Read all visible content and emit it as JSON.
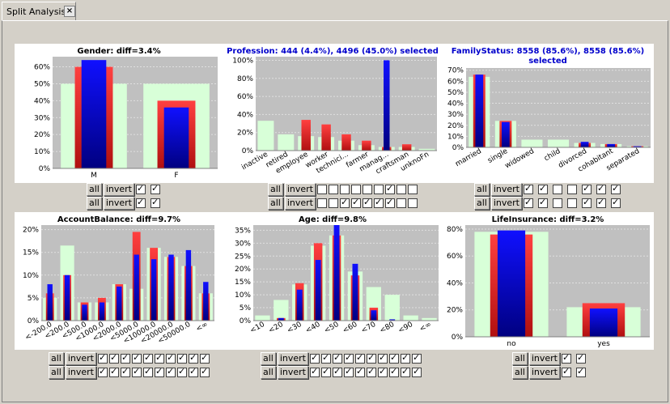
{
  "tab": {
    "title": "Split Analysis",
    "close": "×"
  },
  "controls": {
    "all": "all",
    "invert": "invert"
  },
  "colors": {
    "plot_bg": "#c0c0c0",
    "all": "#d8ffd8",
    "red": "#e83030",
    "blue": "#0000dd"
  },
  "charts": [
    {
      "id": "gender",
      "title": "Gender: diff=3.4%",
      "selected": false,
      "type": "bar",
      "yticks": [
        "0%",
        "10%",
        "20%",
        "30%",
        "40%",
        "50%",
        "60%"
      ],
      "ymax": 66,
      "categories": [
        "M",
        "F"
      ],
      "series": [
        {
          "name": "all",
          "values": [
            50,
            50
          ]
        },
        {
          "name": "red",
          "values": [
            60,
            40
          ]
        },
        {
          "name": "blue",
          "values": [
            64,
            36
          ]
        }
      ],
      "rotate": false,
      "checks": [
        [
          true,
          true
        ],
        [
          true,
          true
        ]
      ]
    },
    {
      "id": "profession",
      "title": "Profession: 444 (4.4%), 4496 (45.0%)  selected",
      "selected": true,
      "type": "bar",
      "yticks": [
        "0%",
        "20%",
        "40%",
        "60%",
        "80%",
        "100%"
      ],
      "ymax": 104,
      "categories": [
        "inactive",
        "retired",
        "employee",
        "worker",
        "technici...",
        "farmer",
        "manag...",
        "craftsman",
        "unknoFn"
      ],
      "series": [
        {
          "name": "all",
          "values": [
            33,
            18,
            16,
            15,
            11,
            6,
            4,
            4,
            2
          ]
        },
        {
          "name": "red",
          "values": [
            0,
            0,
            34,
            29,
            18,
            11,
            4,
            7,
            0
          ]
        },
        {
          "name": "blue",
          "values": [
            0,
            0,
            0,
            0,
            0,
            0,
            100,
            0,
            0
          ]
        }
      ],
      "rotate": true,
      "checks": [
        [
          false,
          false,
          false,
          false,
          false,
          false,
          true,
          false,
          false
        ],
        [
          false,
          false,
          true,
          true,
          true,
          true,
          true,
          false,
          false
        ]
      ]
    },
    {
      "id": "familystatus",
      "title": "FamilyStatus: 8558 (85.6%), 8558 (85.6%)",
      "title2": "selected",
      "selected": true,
      "type": "bar",
      "yticks": [
        "0%",
        "10%",
        "20%",
        "30%",
        "40%",
        "50%",
        "60%",
        "70%"
      ],
      "ymax": 72,
      "categories": [
        "married",
        "single",
        "widowed",
        "child",
        "divorced",
        "cohabitant",
        "separated"
      ],
      "series": [
        {
          "name": "all",
          "values": [
            64,
            24,
            7,
            7,
            4,
            3,
            1
          ]
        },
        {
          "name": "red",
          "values": [
            66,
            24,
            0,
            0,
            4,
            3,
            1
          ]
        },
        {
          "name": "blue",
          "values": [
            66,
            23,
            0,
            0,
            5,
            3,
            1
          ]
        }
      ],
      "rotate": true,
      "checks": [
        [
          true,
          true,
          false,
          false,
          true,
          true,
          true
        ],
        [
          true,
          true,
          false,
          false,
          true,
          true,
          true
        ]
      ]
    },
    {
      "id": "accountbalance",
      "title": "AccountBalance: diff=9.7%",
      "selected": false,
      "type": "bar",
      "yticks": [
        "0%",
        "5%",
        "10%",
        "15%",
        "20%"
      ],
      "ymax": 21,
      "categories": [
        "<-200.0",
        "<200.0",
        "<500.0",
        "<1000.0",
        "<2000.0",
        "<5000.0",
        "<10000.0",
        "<20000.0",
        "<50000.0",
        "<∞"
      ],
      "series": [
        {
          "name": "all",
          "values": [
            5,
            16.5,
            4,
            4,
            8,
            7,
            16,
            14,
            12,
            6
          ]
        },
        {
          "name": "red",
          "values": [
            6,
            10,
            4,
            5,
            8,
            19.5,
            16,
            14,
            12,
            6
          ]
        },
        {
          "name": "blue",
          "values": [
            8,
            10,
            3.5,
            4,
            7.5,
            14.5,
            13.5,
            14.5,
            15.5,
            8.5
          ]
        }
      ],
      "rotate": true,
      "checks": [
        [
          true,
          true,
          true,
          true,
          true,
          true,
          true,
          true,
          true,
          true
        ],
        [
          true,
          true,
          true,
          true,
          true,
          true,
          true,
          true,
          true,
          true
        ]
      ]
    },
    {
      "id": "age",
      "title": "Age: diff=9.8%",
      "selected": false,
      "type": "bar",
      "yticks": [
        "0%",
        "5%",
        "10%",
        "15%",
        "20%",
        "25%",
        "30%",
        "35%"
      ],
      "ymax": 37,
      "categories": [
        "<10",
        "<20",
        "<30",
        "<40",
        "<50",
        "<60",
        "<70",
        "<80",
        "<90",
        "<∞"
      ],
      "series": [
        {
          "name": "all",
          "values": [
            2,
            8,
            14,
            29,
            33,
            19,
            13,
            10,
            2,
            1
          ]
        },
        {
          "name": "red",
          "values": [
            0,
            1,
            14.5,
            30,
            33,
            17.5,
            5,
            0,
            0,
            0
          ]
        },
        {
          "name": "blue",
          "values": [
            0,
            1,
            12,
            23.5,
            37,
            22,
            4,
            0.5,
            0,
            0
          ]
        }
      ],
      "rotate": true,
      "checks": [
        [
          true,
          true,
          true,
          true,
          true,
          true,
          true,
          true,
          true,
          true
        ],
        [
          true,
          true,
          true,
          true,
          true,
          true,
          true,
          true,
          true,
          true
        ]
      ]
    },
    {
      "id": "lifeinsurance",
      "title": "LifeInsurance: diff=3.2%",
      "selected": false,
      "type": "bar",
      "yticks": [
        "0%",
        "20%",
        "40%",
        "60%",
        "80%"
      ],
      "ymax": 83,
      "categories": [
        "no",
        "yes"
      ],
      "series": [
        {
          "name": "all",
          "values": [
            78,
            22
          ]
        },
        {
          "name": "red",
          "values": [
            76,
            25
          ]
        },
        {
          "name": "blue",
          "values": [
            79,
            21
          ]
        }
      ],
      "rotate": false,
      "checks": [
        [
          true,
          true
        ],
        [
          true,
          true
        ]
      ]
    }
  ]
}
